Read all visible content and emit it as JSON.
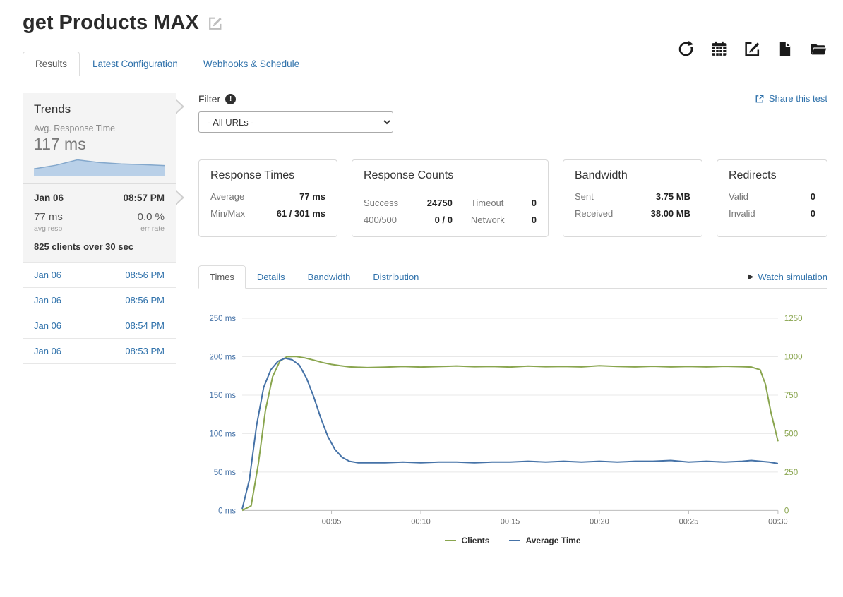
{
  "page": {
    "title": "get Products MAX"
  },
  "tabs": {
    "results": "Results",
    "latest_configuration": "Latest Configuration",
    "webhooks_schedule": "Webhooks & Schedule"
  },
  "toolbar_icons": [
    "refresh-icon",
    "calendar-icon",
    "edit-icon",
    "document-icon",
    "folder-icon"
  ],
  "sidebar": {
    "trends_title": "Trends",
    "avg_label": "Avg. Response Time",
    "avg_value": "117 ms",
    "sparkline": [
      48,
      75,
      117,
      96,
      86,
      80,
      73
    ],
    "selected": {
      "date": "Jan 06",
      "time": "08:57 PM",
      "avg": "77 ms",
      "avg_label": "avg resp",
      "err": "0.0 %",
      "err_label": "err rate",
      "summary": "825 clients over 30 sec"
    },
    "history": [
      {
        "date": "Jan 06",
        "time": "08:56 PM"
      },
      {
        "date": "Jan 06",
        "time": "08:56 PM"
      },
      {
        "date": "Jan 06",
        "time": "08:54 PM"
      },
      {
        "date": "Jan 06",
        "time": "08:53 PM"
      }
    ]
  },
  "filter": {
    "label": "Filter",
    "selected_option": "- All URLs -"
  },
  "share": {
    "label": "Share this test"
  },
  "stats": {
    "response_times": {
      "title": "Response Times",
      "rows": [
        {
          "label": "Average",
          "value": "77 ms"
        },
        {
          "label": "Min/Max",
          "value": "61 / 301 ms"
        }
      ]
    },
    "response_counts": {
      "title": "Response Counts",
      "rows": [
        {
          "label": "Success",
          "value": "24750",
          "label2": "Timeout",
          "value2": "0"
        },
        {
          "label": "400/500",
          "value": "0 / 0",
          "label2": "Network",
          "value2": "0"
        }
      ]
    },
    "bandwidth": {
      "title": "Bandwidth",
      "rows": [
        {
          "label": "Sent",
          "value": "3.75 MB"
        },
        {
          "label": "Received",
          "value": "38.00 MB"
        }
      ]
    },
    "redirects": {
      "title": "Redirects",
      "rows": [
        {
          "label": "Valid",
          "value": "0"
        },
        {
          "label": "Invalid",
          "value": "0"
        }
      ]
    }
  },
  "chart_tabs": {
    "times": "Times",
    "details": "Details",
    "bandwidth": "Bandwidth",
    "distribution": "Distribution",
    "watch": "Watch simulation"
  },
  "chart_data": {
    "type": "line",
    "title": "",
    "x_unit": "seconds",
    "xlim": [
      0,
      30
    ],
    "x_ticks": [
      {
        "t": 5,
        "label": "00:05"
      },
      {
        "t": 10,
        "label": "00:10"
      },
      {
        "t": 15,
        "label": "00:15"
      },
      {
        "t": 20,
        "label": "00:20"
      },
      {
        "t": 25,
        "label": "00:25"
      },
      {
        "t": 30,
        "label": "00:30"
      }
    ],
    "left_axis": {
      "min": 0,
      "max": 250,
      "label_color": "#4572A7",
      "ticks": [
        "0 ms",
        "50 ms",
        "100 ms",
        "150 ms",
        "200 ms",
        "250 ms"
      ]
    },
    "right_axis": {
      "min": 0,
      "max": 1250,
      "label_color": "#89A54E",
      "ticks": [
        "0",
        "250",
        "500",
        "750",
        "1000",
        "1250"
      ]
    },
    "series": [
      {
        "name": "Clients",
        "axis": "right",
        "color": "#89A54E",
        "points": [
          [
            0,
            0
          ],
          [
            0.5,
            30
          ],
          [
            0.9,
            300
          ],
          [
            1.3,
            650
          ],
          [
            1.7,
            870
          ],
          [
            2.1,
            970
          ],
          [
            2.5,
            1000
          ],
          [
            3,
            1002
          ],
          [
            3.5,
            992
          ],
          [
            4,
            978
          ],
          [
            4.5,
            962
          ],
          [
            5,
            950
          ],
          [
            5.5,
            941
          ],
          [
            6,
            934
          ],
          [
            7,
            929
          ],
          [
            8,
            932
          ],
          [
            9,
            937
          ],
          [
            10,
            933
          ],
          [
            11,
            936
          ],
          [
            12,
            940
          ],
          [
            13,
            935
          ],
          [
            14,
            937
          ],
          [
            15,
            933
          ],
          [
            16,
            939
          ],
          [
            17,
            935
          ],
          [
            18,
            937
          ],
          [
            19,
            934
          ],
          [
            20,
            941
          ],
          [
            21,
            937
          ],
          [
            22,
            934
          ],
          [
            23,
            938
          ],
          [
            24,
            934
          ],
          [
            25,
            937
          ],
          [
            26,
            934
          ],
          [
            27,
            938
          ],
          [
            28,
            935
          ],
          [
            28.5,
            933
          ],
          [
            29,
            915
          ],
          [
            29.3,
            820
          ],
          [
            29.6,
            640
          ],
          [
            30,
            450
          ]
        ]
      },
      {
        "name": "Average Time",
        "axis": "left",
        "color": "#4572A7",
        "points": [
          [
            0,
            2
          ],
          [
            0.4,
            40
          ],
          [
            0.8,
            110
          ],
          [
            1.2,
            160
          ],
          [
            1.6,
            183
          ],
          [
            2,
            194
          ],
          [
            2.4,
            198
          ],
          [
            2.8,
            196
          ],
          [
            3.2,
            189
          ],
          [
            3.6,
            172
          ],
          [
            4,
            148
          ],
          [
            4.4,
            120
          ],
          [
            4.8,
            96
          ],
          [
            5.2,
            79
          ],
          [
            5.6,
            69
          ],
          [
            6,
            64
          ],
          [
            6.5,
            62
          ],
          [
            7,
            62
          ],
          [
            8,
            62
          ],
          [
            9,
            63
          ],
          [
            10,
            62
          ],
          [
            11,
            63
          ],
          [
            12,
            63
          ],
          [
            13,
            62
          ],
          [
            14,
            63
          ],
          [
            15,
            63
          ],
          [
            16,
            64
          ],
          [
            17,
            63
          ],
          [
            18,
            64
          ],
          [
            19,
            63
          ],
          [
            20,
            64
          ],
          [
            21,
            63
          ],
          [
            22,
            64
          ],
          [
            23,
            64
          ],
          [
            24,
            65
          ],
          [
            25,
            63
          ],
          [
            26,
            64
          ],
          [
            27,
            63
          ],
          [
            28,
            64
          ],
          [
            28.5,
            65
          ],
          [
            29,
            64
          ],
          [
            29.5,
            63
          ],
          [
            30,
            61
          ]
        ]
      }
    ],
    "legend": [
      {
        "label": "Clients",
        "color": "#89A54E"
      },
      {
        "label": "Average Time",
        "color": "#4572A7"
      }
    ]
  }
}
